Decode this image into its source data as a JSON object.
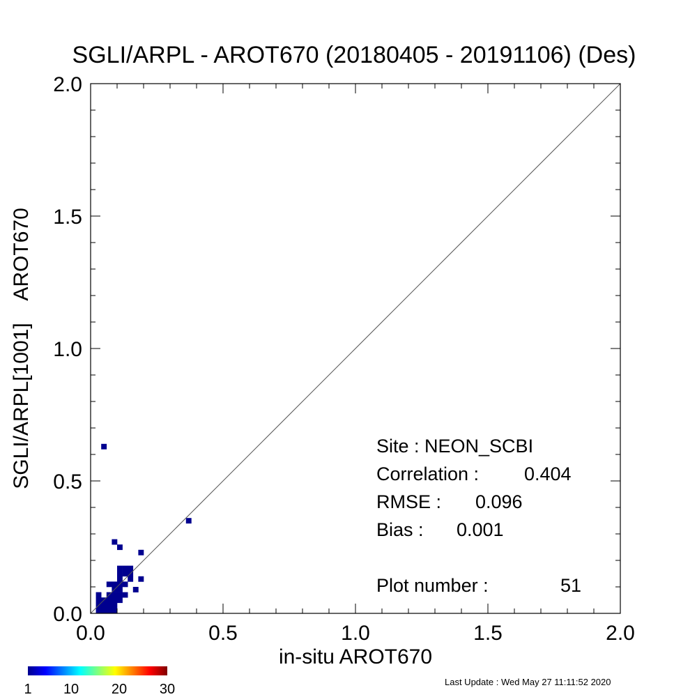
{
  "chart_data": {
    "type": "heatmap",
    "title": "SGLI/ARPL - AROT670 (20180405 - 20191106) (Des)",
    "xlabel": "in-situ AROT670",
    "ylabel": "SGLI/ARPL[1001]    AROT670",
    "xlim": [
      0.0,
      2.0
    ],
    "ylim": [
      0.0,
      2.0
    ],
    "xticks": [
      "0.0",
      "0.5",
      "1.0",
      "1.5",
      "2.0"
    ],
    "yticks": [
      "0.0",
      "0.5",
      "1.0",
      "1.5",
      "2.0"
    ],
    "reference_line": "1:1",
    "bin_size": 0.02,
    "colorbar": {
      "min": 1,
      "max": 30,
      "labels": [
        "1",
        "10",
        "20",
        "30"
      ]
    },
    "cell_color": "#00008f",
    "bins": [
      [
        0.02,
        0.0
      ],
      [
        0.04,
        0.0
      ],
      [
        0.06,
        0.0
      ],
      [
        0.08,
        0.0
      ],
      [
        0.02,
        0.02
      ],
      [
        0.04,
        0.02
      ],
      [
        0.06,
        0.02
      ],
      [
        0.08,
        0.02
      ],
      [
        0.02,
        0.04
      ],
      [
        0.04,
        0.04
      ],
      [
        0.06,
        0.04
      ],
      [
        0.08,
        0.04
      ],
      [
        0.1,
        0.04
      ],
      [
        0.02,
        0.06
      ],
      [
        0.06,
        0.06
      ],
      [
        0.08,
        0.06
      ],
      [
        0.1,
        0.06
      ],
      [
        0.12,
        0.06
      ],
      [
        0.08,
        0.08
      ],
      [
        0.1,
        0.08
      ],
      [
        0.16,
        0.08
      ],
      [
        0.06,
        0.1
      ],
      [
        0.08,
        0.1
      ],
      [
        0.1,
        0.1
      ],
      [
        0.12,
        0.1
      ],
      [
        0.1,
        0.12
      ],
      [
        0.14,
        0.12
      ],
      [
        0.18,
        0.12
      ],
      [
        0.1,
        0.14
      ],
      [
        0.12,
        0.14
      ],
      [
        0.14,
        0.14
      ],
      [
        0.1,
        0.16
      ],
      [
        0.12,
        0.16
      ],
      [
        0.14,
        0.16
      ],
      [
        0.18,
        0.22
      ],
      [
        0.1,
        0.24
      ],
      [
        0.08,
        0.26
      ],
      [
        0.36,
        0.34
      ],
      [
        0.04,
        0.62
      ]
    ],
    "stats": {
      "site_label": "Site : NEON_SCBI",
      "correlation_label": "Correlation :",
      "correlation": "0.404",
      "rmse_label": "RMSE :",
      "rmse": "0.096",
      "bias_label": "Bias :",
      "bias": "0.001",
      "plot_number_label": "Plot number :",
      "plot_number": "51"
    }
  },
  "footer": {
    "last_update": "Last Update : Wed May 27 11:11:52 2020"
  }
}
